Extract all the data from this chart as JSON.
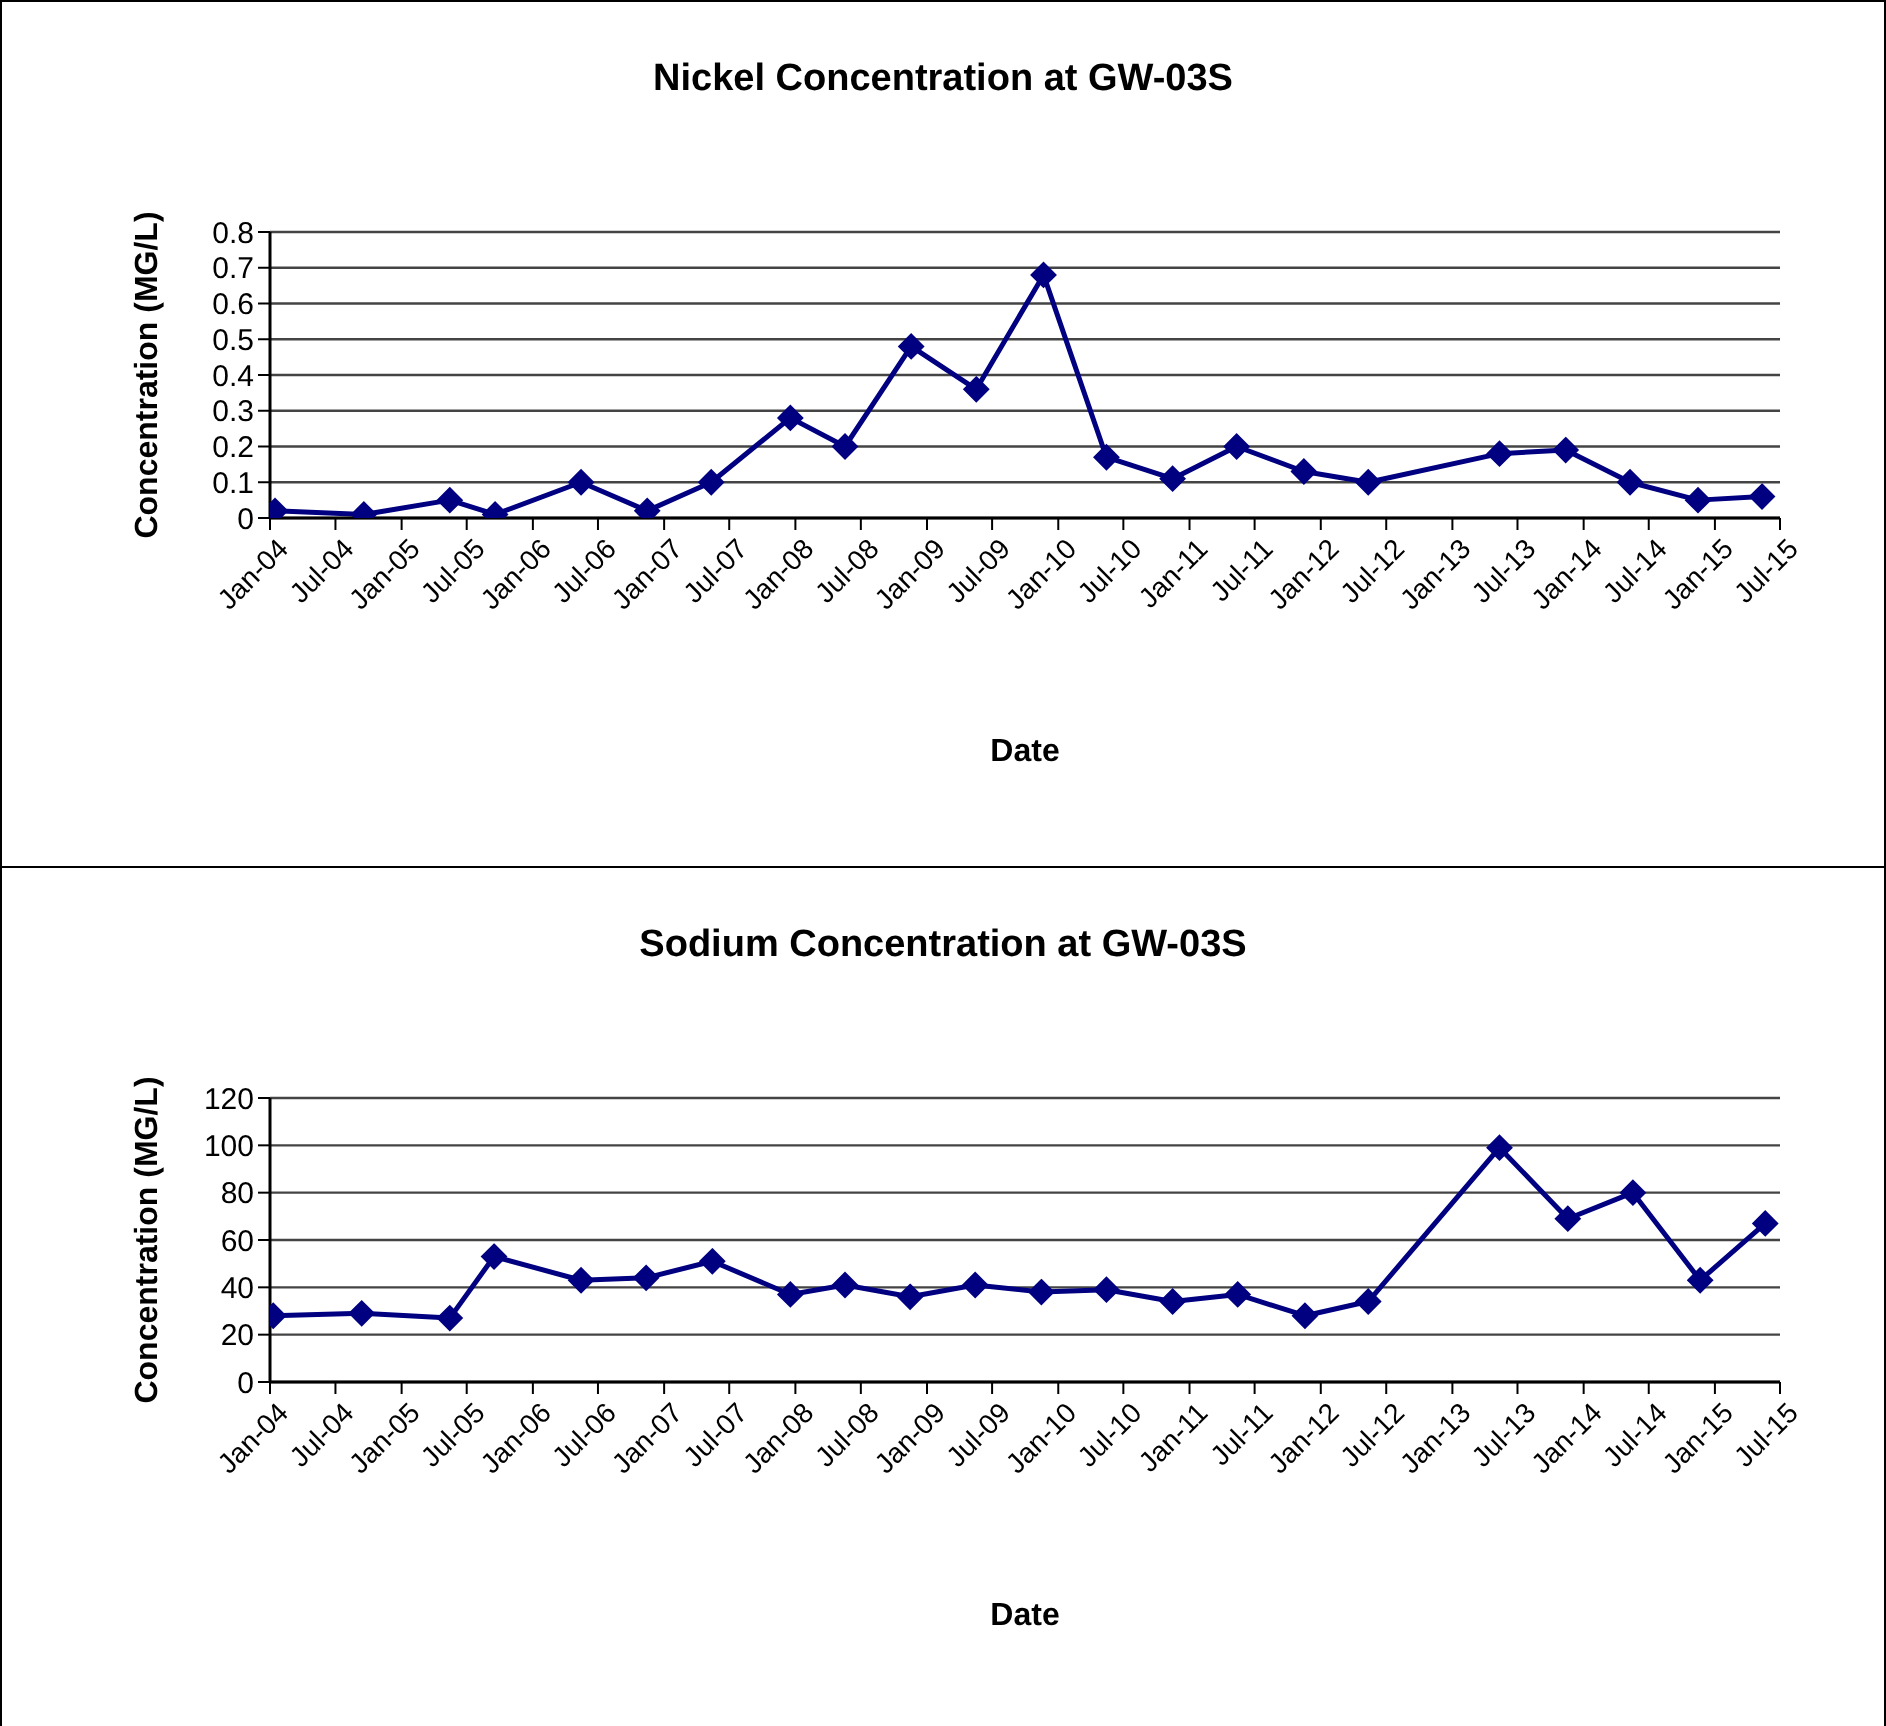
{
  "chart_data": [
    {
      "type": "line",
      "title": "Nickel Concentration at GW-03S",
      "xlabel": "Date",
      "ylabel": "Concentration (MG/L)",
      "x": [
        "2004-01-15",
        "2004-09-18",
        "2005-05-15",
        "2005-09-18",
        "2006-05-15",
        "2006-11-15",
        "2007-05-12",
        "2007-12-18",
        "2008-05-18",
        "2008-11-18",
        "2009-05-18",
        "2009-11-21",
        "2010-05-15",
        "2010-11-15",
        "2011-05-12",
        "2011-11-15",
        "2012-05-12",
        "2013-05-12",
        "2013-11-12",
        "2014-05-10",
        "2014-11-15",
        "2015-05-12"
      ],
      "series": [
        {
          "color": "#000080",
          "values": [
            0.02,
            0.01,
            0.05,
            0.01,
            0.1,
            0.02,
            0.1,
            0.28,
            0.2,
            0.48,
            0.36,
            0.68,
            0.17,
            0.11,
            0.2,
            0.13,
            0.1,
            0.18,
            0.19,
            0.1,
            0.05,
            0.06
          ]
        }
      ],
      "xlim": [
        "2004-01",
        "2015-07"
      ],
      "xticks": [
        {
          "value": "2004-01",
          "label": "Jan-04"
        },
        {
          "value": "2004-07",
          "label": "Jul-04"
        },
        {
          "value": "2005-01",
          "label": "Jan-05"
        },
        {
          "value": "2005-07",
          "label": "Jul-05"
        },
        {
          "value": "2006-01",
          "label": "Jan-06"
        },
        {
          "value": "2006-07",
          "label": "Jul-06"
        },
        {
          "value": "2007-01",
          "label": "Jan-07"
        },
        {
          "value": "2007-07",
          "label": "Jul-07"
        },
        {
          "value": "2008-01",
          "label": "Jan-08"
        },
        {
          "value": "2008-07",
          "label": "Jul-08"
        },
        {
          "value": "2009-01",
          "label": "Jan-09"
        },
        {
          "value": "2009-07",
          "label": "Jul-09"
        },
        {
          "value": "2010-01",
          "label": "Jan-10"
        },
        {
          "value": "2010-07",
          "label": "Jul-10"
        },
        {
          "value": "2011-01",
          "label": "Jan-11"
        },
        {
          "value": "2011-07",
          "label": "Jul-11"
        },
        {
          "value": "2012-01",
          "label": "Jan-12"
        },
        {
          "value": "2012-07",
          "label": "Jul-12"
        },
        {
          "value": "2013-01",
          "label": "Jan-13"
        },
        {
          "value": "2013-07",
          "label": "Jul-13"
        },
        {
          "value": "2014-01",
          "label": "Jan-14"
        },
        {
          "value": "2014-07",
          "label": "Jul-14"
        },
        {
          "value": "2015-01",
          "label": "Jan-15"
        },
        {
          "value": "2015-07",
          "label": "Jul-15"
        }
      ],
      "ylim": [
        0,
        0.8
      ],
      "yticks": [
        0,
        0.1,
        0.2,
        0.3,
        0.4,
        0.5,
        0.6,
        0.7,
        0.8
      ],
      "grid": "y",
      "marker": "diamond",
      "line_style": "solid",
      "legend": false
    },
    {
      "type": "line",
      "title": "Sodium Concentration at GW-03S",
      "xlabel": "Date",
      "ylabel": "Concentration (MG/L)",
      "x": [
        "2004-01-10",
        "2004-09-12",
        "2005-05-15",
        "2005-09-15",
        "2006-05-15",
        "2006-11-12",
        "2007-05-15",
        "2007-12-18",
        "2008-05-18",
        "2008-11-15",
        "2009-05-15",
        "2009-11-15",
        "2010-05-15",
        "2010-11-15",
        "2011-05-15",
        "2011-11-18",
        "2012-05-12",
        "2013-05-12",
        "2013-11-18",
        "2014-05-18",
        "2014-11-21",
        "2015-05-21"
      ],
      "series": [
        {
          "color": "#000080",
          "values": [
            28,
            29,
            27,
            53,
            43,
            44,
            51,
            37,
            41,
            36,
            41,
            38,
            39,
            34,
            37,
            28,
            34,
            99,
            69,
            80,
            43,
            67
          ]
        }
      ],
      "xlim": [
        "2004-01",
        "2015-07"
      ],
      "xticks": [
        {
          "value": "2004-01",
          "label": "Jan-04"
        },
        {
          "value": "2004-07",
          "label": "Jul-04"
        },
        {
          "value": "2005-01",
          "label": "Jan-05"
        },
        {
          "value": "2005-07",
          "label": "Jul-05"
        },
        {
          "value": "2006-01",
          "label": "Jan-06"
        },
        {
          "value": "2006-07",
          "label": "Jul-06"
        },
        {
          "value": "2007-01",
          "label": "Jan-07"
        },
        {
          "value": "2007-07",
          "label": "Jul-07"
        },
        {
          "value": "2008-01",
          "label": "Jan-08"
        },
        {
          "value": "2008-07",
          "label": "Jul-08"
        },
        {
          "value": "2009-01",
          "label": "Jan-09"
        },
        {
          "value": "2009-07",
          "label": "Jul-09"
        },
        {
          "value": "2010-01",
          "label": "Jan-10"
        },
        {
          "value": "2010-07",
          "label": "Jul-10"
        },
        {
          "value": "2011-01",
          "label": "Jan-11"
        },
        {
          "value": "2011-07",
          "label": "Jul-11"
        },
        {
          "value": "2012-01",
          "label": "Jan-12"
        },
        {
          "value": "2012-07",
          "label": "Jul-12"
        },
        {
          "value": "2013-01",
          "label": "Jan-13"
        },
        {
          "value": "2013-07",
          "label": "Jul-13"
        },
        {
          "value": "2014-01",
          "label": "Jan-14"
        },
        {
          "value": "2014-07",
          "label": "Jul-14"
        },
        {
          "value": "2015-01",
          "label": "Jan-15"
        },
        {
          "value": "2015-07",
          "label": "Jul-15"
        }
      ],
      "ylim": [
        0,
        120
      ],
      "yticks": [
        0,
        20,
        40,
        60,
        80,
        100,
        120
      ],
      "grid": "y",
      "marker": "diamond",
      "line_style": "solid",
      "legend": false
    }
  ]
}
